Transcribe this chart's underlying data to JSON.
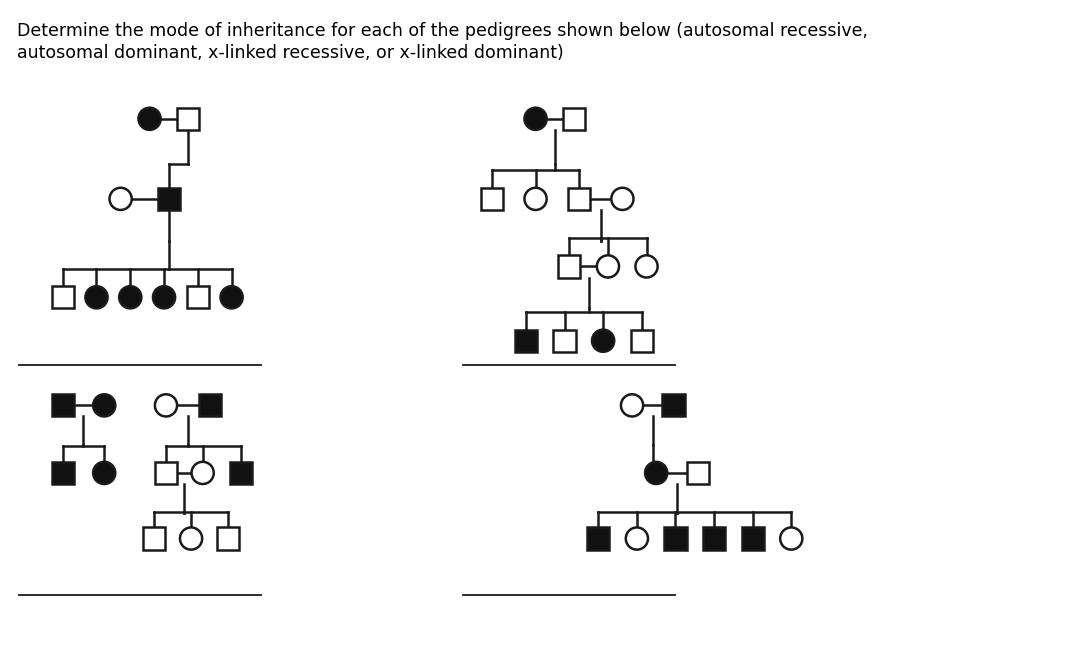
{
  "bg_color": "#ffffff",
  "line_color": "#1a1a1a",
  "filled_color": "#111111",
  "empty_color": "#ffffff",
  "title_fontsize": 12.5,
  "r": 0.115,
  "s": 0.115,
  "lw": 1.8
}
